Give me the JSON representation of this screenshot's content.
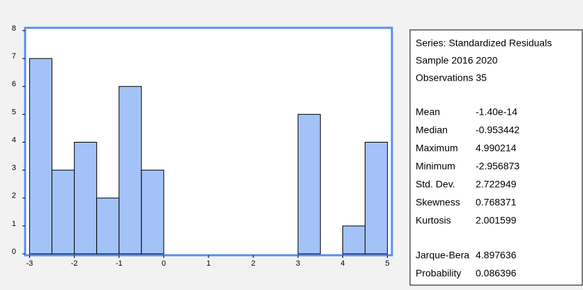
{
  "chart_data": {
    "type": "histogram",
    "bins": [
      -3,
      -2.5,
      -2,
      -1.5,
      -1,
      -0.5,
      0,
      0.5,
      1,
      1.5,
      2,
      2.5,
      3,
      3.5,
      4,
      4.5,
      5
    ],
    "values": [
      7,
      3,
      4,
      2,
      6,
      3,
      0,
      0,
      0,
      0,
      0,
      0,
      5,
      0,
      1,
      4
    ],
    "color": "#a3c2f7",
    "frame_color": "#5b8ef0",
    "xlim": [
      -3.1,
      5.1
    ],
    "ylim": [
      0,
      8.1
    ],
    "xticks": [
      -3,
      -2,
      -1,
      0,
      1,
      2,
      3,
      4,
      5
    ],
    "yticks": [
      0,
      1,
      2,
      3,
      4,
      5,
      6,
      7,
      8
    ],
    "stats_panel": {
      "header": [
        "Series: Standardized Residuals",
        "Sample 2016 2020",
        "Observations 35"
      ],
      "groups": [
        [
          [
            "Mean",
            "-1.40e-14"
          ],
          [
            "Median",
            "-0.953442"
          ],
          [
            "Maximum",
            "4.990214"
          ],
          [
            "Minimum",
            "-2.956873"
          ],
          [
            "Std. Dev.",
            "2.722949"
          ],
          [
            "Skewness",
            "0.768371"
          ],
          [
            "Kurtosis",
            "2.001599"
          ]
        ],
        [
          [
            "Jarque-Bera",
            "4.897636"
          ],
          [
            "Probability",
            "0.086396"
          ]
        ]
      ]
    }
  }
}
